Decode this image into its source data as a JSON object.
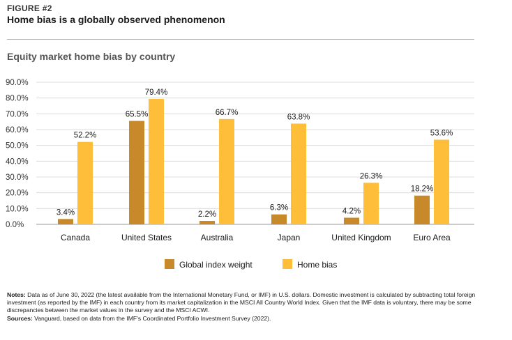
{
  "figure": {
    "label": "FIGURE #2",
    "title": "Home bias is a globally observed phenomenon"
  },
  "chart_data": {
    "type": "bar",
    "title": "Equity market home bias by country",
    "categories": [
      "Canada",
      "United States",
      "Australia",
      "Japan",
      "United Kingdom",
      "Euro Area"
    ],
    "series": [
      {
        "name": "Global index weight",
        "values": [
          3.4,
          65.5,
          2.2,
          6.3,
          4.2,
          18.2
        ],
        "color": "#C8892B"
      },
      {
        "name": "Home bias",
        "values": [
          52.2,
          79.4,
          66.7,
          63.8,
          26.3,
          53.6
        ],
        "color": "#FFBE3A"
      }
    ],
    "data_labels": {
      "Global index weight": [
        "3.4%",
        "65.5%",
        "2.2%",
        "6.3%",
        "4.2%",
        "18.2%"
      ],
      "Home bias": [
        "52.2%",
        "79.4%",
        "66.7%",
        "63.8%",
        "26.3%",
        "53.6%"
      ]
    },
    "ylim": [
      0,
      90
    ],
    "yticks": [
      "0.0%",
      "10.0%",
      "20.0%",
      "30.0%",
      "40.0%",
      "50.0%",
      "60.0%",
      "70.0%",
      "80.0%",
      "90.0%"
    ],
    "grid": true,
    "legend_position": "bottom-center",
    "xlabel": "",
    "ylabel": ""
  },
  "notes": {
    "notes_label": "Notes:",
    "notes_text": "Data as of June 30, 2022 (the latest available from the International Monetary Fund, or IMF) in U.S. dollars. Domestic investment is calculated by subtracting total foreign investment (as reported by the IMF) in each country from its market capitalization in the MSCI All Country World Index. Given that the IMF data is voluntary, there may be some discrepancies between the market values in the survey and the MSCI ACWI.",
    "sources_label": "Sources:",
    "sources_text": "Vanguard, based on data from the IMF's Coordinated Portfolio Investment Survey (2022)."
  }
}
